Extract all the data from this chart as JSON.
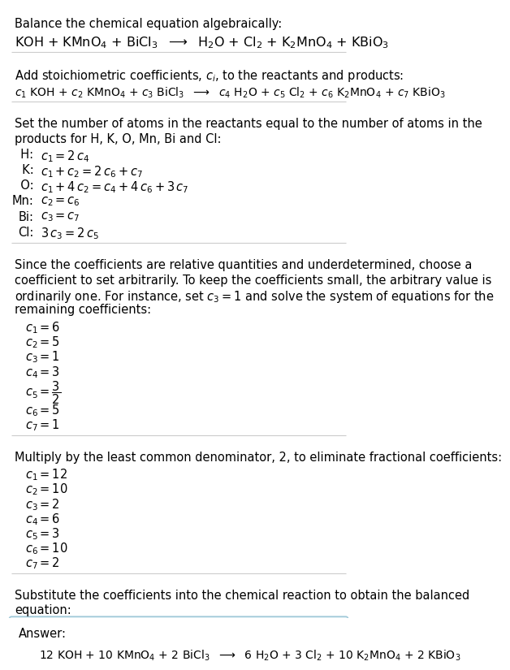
{
  "bg_color": "#ffffff",
  "answer_box_color": "#e8f4f8",
  "answer_box_border": "#a0c8d8",
  "text_color": "#000000",
  "section1_plain": "Balance the chemical equation algebraically:",
  "section1_math": "KOH + KMnO$_4$ + BiCl$_3$  $\\longrightarrow$  H$_2$O + Cl$_2$ + K$_2$MnO$_4$ + KBiO$_3$",
  "section2_plain": "Add stoichiometric coefficients, $c_i$, to the reactants and products:",
  "section2_math": "$c_1$ KOH + $c_2$ KMnO$_4$ + $c_3$ BiCl$_3$  $\\longrightarrow$  $c_4$ H$_2$O + $c_5$ Cl$_2$ + $c_6$ K$_2$MnO$_4$ + $c_7$ KBiO$_3$",
  "section3_plain1": "Set the number of atoms in the reactants equal to the number of atoms in the",
  "section3_plain2": "products for H, K, O, Mn, Bi and Cl:",
  "eq_rows": [
    [
      "  H:",
      "$c_1 = 2\\,c_4$"
    ],
    [
      "  K:",
      "$c_1 + c_2 = 2\\,c_6 + c_7$"
    ],
    [
      "  O:",
      "$c_1 + 4\\,c_2 = c_4 + 4\\,c_6 + 3\\,c_7$"
    ],
    [
      "Mn:",
      "$c_2 = c_6$"
    ],
    [
      "Bi:",
      "$c_3 = c_7$"
    ],
    [
      "Cl:",
      "$3\\,c_3 = 2\\,c_5$"
    ]
  ],
  "section4_lines": [
    "Since the coefficients are relative quantities and underdetermined, choose a",
    "coefficient to set arbitrarily. To keep the coefficients small, the arbitrary value is",
    "ordinarily one. For instance, set $c_3 = 1$ and solve the system of equations for the",
    "remaining coefficients:"
  ],
  "coeffs1_pre": [
    "$c_1 = 6$",
    "$c_2 = 5$",
    "$c_3 = 1$",
    "$c_4 = 3$"
  ],
  "coeffs1_frac": "$c_5 = \\dfrac{3}{2}$",
  "coeffs1_post": [
    "$c_6 = 5$",
    "$c_7 = 1$"
  ],
  "section5_plain": "Multiply by the least common denominator, 2, to eliminate fractional coefficients:",
  "coeffs2": [
    "$c_1 = 12$",
    "$c_2 = 10$",
    "$c_3 = 2$",
    "$c_4 = 6$",
    "$c_5 = 3$",
    "$c_6 = 10$",
    "$c_7 = 2$"
  ],
  "section6_plain1": "Substitute the coefficients into the chemical reaction to obtain the balanced",
  "section6_plain2": "equation:",
  "answer_label": "Answer:",
  "answer_math": "12 KOH + 10 KMnO$_4$ + 2 BiCl$_3$  $\\longrightarrow$  6 H$_2$O + 3 Cl$_2$ + 10 K$_2$MnO$_4$ + 2 KBiO$_3$"
}
